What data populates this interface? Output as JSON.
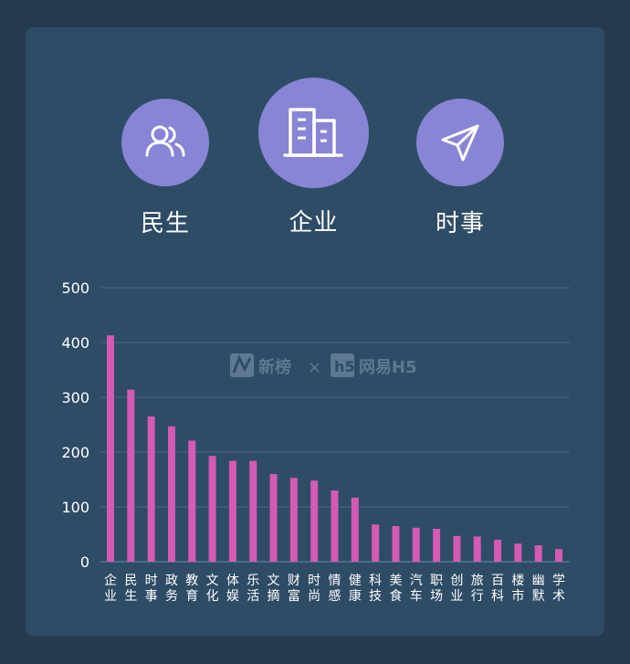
{
  "tabs": [
    {
      "label": "民生",
      "icon": "people-icon"
    },
    {
      "label": "企业",
      "icon": "building-icon"
    },
    {
      "label": "时事",
      "icon": "send-icon"
    }
  ],
  "colors": {
    "bar": "#d45ab4",
    "accent": "#8884d6",
    "grid": "#4a6782"
  },
  "watermark": {
    "left": "新榜",
    "sep": "×",
    "right": "网易H5"
  },
  "chart_data": {
    "type": "bar",
    "categories": [
      "企业",
      "民生",
      "时事",
      "政务",
      "教育",
      "文化",
      "体娱",
      "乐活",
      "文摘",
      "财富",
      "时尚",
      "情感",
      "健康",
      "科技",
      "美食",
      "汽车",
      "职场",
      "创业",
      "旅行",
      "百科",
      "楼市",
      "幽默",
      "学术"
    ],
    "values": [
      413,
      314,
      265,
      247,
      221,
      193,
      184,
      184,
      160,
      153,
      148,
      130,
      117,
      68,
      65,
      62,
      60,
      47,
      46,
      40,
      33,
      30,
      23
    ],
    "yticks": [
      0,
      100,
      200,
      300,
      400,
      500
    ],
    "ylim": [
      0,
      500
    ],
    "grid": true
  }
}
